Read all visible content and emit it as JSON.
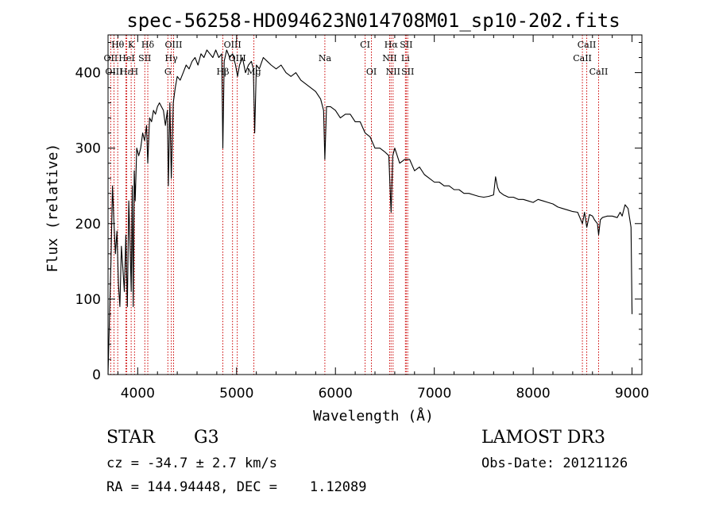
{
  "chart_data": {
    "type": "line",
    "title": "spec-56258-HD094623N014708M01_sp10-202.fits",
    "xlabel": "Wavelength (Å)",
    "ylabel": "Flux (relative)",
    "xlim": [
      3700,
      9100
    ],
    "ylim": [
      0,
      450
    ],
    "xticks": [
      4000,
      5000,
      6000,
      7000,
      8000,
      9000
    ],
    "yticks": [
      0,
      100,
      200,
      300,
      400
    ],
    "grid": false,
    "series": [
      {
        "x": [
          3700,
          3715,
          3730,
          3745,
          3760,
          3775,
          3790,
          3805,
          3820,
          3835,
          3850,
          3865,
          3880,
          3895,
          3910,
          3925,
          3935,
          3945,
          3955,
          3965,
          3975,
          3990,
          4010,
          4030,
          4050,
          4070,
          4090,
          4102,
          4120,
          4140,
          4160,
          4180,
          4200,
          4220,
          4240,
          4260,
          4280,
          4300,
          4310,
          4325,
          4340,
          4360,
          4380,
          4400,
          4430,
          4460,
          4490,
          4520,
          4550,
          4580,
          4610,
          4640,
          4670,
          4700,
          4730,
          4760,
          4790,
          4820,
          4850,
          4861,
          4875,
          4900,
          4930,
          4960,
          4990,
          5010,
          5030,
          5060,
          5090,
          5120,
          5150,
          5170,
          5183,
          5200,
          5230,
          5270,
          5310,
          5350,
          5400,
          5450,
          5500,
          5550,
          5600,
          5650,
          5700,
          5750,
          5800,
          5850,
          5880,
          5893,
          5910,
          5950,
          6000,
          6050,
          6100,
          6150,
          6200,
          6250,
          6300,
          6350,
          6400,
          6450,
          6500,
          6540,
          6563,
          6580,
          6600,
          6650,
          6700,
          6750,
          6800,
          6850,
          6900,
          6950,
          7000,
          7050,
          7100,
          7150,
          7200,
          7250,
          7300,
          7350,
          7400,
          7450,
          7500,
          7550,
          7600,
          7620,
          7640,
          7660,
          7700,
          7750,
          7800,
          7850,
          7900,
          7950,
          8000,
          8050,
          8100,
          8150,
          8200,
          8250,
          8300,
          8350,
          8400,
          8450,
          8498,
          8520,
          8542,
          8570,
          8600,
          8620,
          8650,
          8662,
          8680,
          8700,
          8750,
          8800,
          8850,
          8880,
          8900,
          8930,
          8960,
          8990,
          9000
        ],
        "values": [
          0,
          80,
          150,
          250,
          200,
          160,
          190,
          120,
          90,
          170,
          140,
          110,
          185,
          90,
          230,
          160,
          110,
          250,
          90,
          270,
          230,
          300,
          290,
          300,
          320,
          310,
          330,
          280,
          340,
          335,
          350,
          345,
          355,
          360,
          355,
          350,
          330,
          350,
          250,
          360,
          260,
          360,
          380,
          395,
          390,
          400,
          410,
          405,
          415,
          420,
          410,
          425,
          420,
          430,
          425,
          420,
          430,
          420,
          425,
          300,
          415,
          430,
          420,
          425,
          410,
          395,
          410,
          420,
          400,
          410,
          415,
          405,
          320,
          410,
          405,
          420,
          415,
          410,
          405,
          410,
          400,
          395,
          400,
          390,
          385,
          380,
          375,
          365,
          350,
          285,
          355,
          355,
          350,
          340,
          345,
          345,
          335,
          335,
          320,
          315,
          300,
          300,
          295,
          290,
          215,
          290,
          300,
          280,
          285,
          285,
          270,
          275,
          265,
          260,
          255,
          255,
          250,
          250,
          245,
          245,
          240,
          240,
          238,
          236,
          235,
          236,
          238,
          262,
          248,
          242,
          238,
          235,
          235,
          232,
          232,
          230,
          228,
          232,
          230,
          228,
          226,
          222,
          220,
          218,
          216,
          215,
          200,
          215,
          195,
          212,
          210,
          205,
          200,
          185,
          205,
          208,
          210,
          210,
          208,
          215,
          210,
          225,
          220,
          195,
          80
        ]
      }
    ],
    "spectral_lines": [
      {
        "label": "Hθ",
        "x": 3798,
        "row": 0
      },
      {
        "label": "K",
        "x": 3934,
        "row": 0
      },
      {
        "label": "Hδ",
        "x": 4102,
        "row": 0
      },
      {
        "label": "OIII",
        "x": 4363,
        "row": 0
      },
      {
        "label": "OIII",
        "x": 4959,
        "row": 0
      },
      {
        "label": "CI",
        "x": 6300,
        "row": 0
      },
      {
        "label": "Hα",
        "x": 6563,
        "row": 0
      },
      {
        "label": "SII",
        "x": 6716,
        "row": 0
      },
      {
        "label": "CaII",
        "x": 8542,
        "row": 0
      },
      {
        "label": "OII",
        "x": 3727,
        "row": 1
      },
      {
        "label": "HeI",
        "x": 3889,
        "row": 1
      },
      {
        "label": "SII",
        "x": 4072,
        "row": 1
      },
      {
        "label": "Hγ",
        "x": 4340,
        "row": 1
      },
      {
        "label": "OIII",
        "x": 5007,
        "row": 1
      },
      {
        "label": "Na",
        "x": 5893,
        "row": 1
      },
      {
        "label": "NII",
        "x": 6548,
        "row": 1
      },
      {
        "label": "Li",
        "x": 6708,
        "row": 1
      },
      {
        "label": "CaII",
        "x": 8498,
        "row": 1
      },
      {
        "label": "OIII",
        "x": 3760,
        "row": 2
      },
      {
        "label": "Hε",
        "x": 3880,
        "row": 2
      },
      {
        "label": "H",
        "x": 3968,
        "row": 2
      },
      {
        "label": "G",
        "x": 4305,
        "row": 2
      },
      {
        "label": "Hβ",
        "x": 4861,
        "row": 2
      },
      {
        "label": "Mg",
        "x": 5175,
        "row": 2
      },
      {
        "label": "OI",
        "x": 6364,
        "row": 2
      },
      {
        "label": "NII",
        "x": 6583,
        "row": 2
      },
      {
        "label": "SII",
        "x": 6731,
        "row": 2
      },
      {
        "label": "CaII",
        "x": 8662,
        "row": 2
      }
    ],
    "line_colors": {
      "spectrum": "#000000",
      "markers": "#cc0000",
      "axes": "#000000"
    }
  },
  "info": {
    "class_label": "STAR",
    "subclass": "G3",
    "survey": "LAMOST DR3",
    "cz": "cz = -34.7 ± 2.7 km/s",
    "obs_date": "Obs-Date: 20121126",
    "coords": "RA = 144.94448, DEC =    1.12089"
  }
}
